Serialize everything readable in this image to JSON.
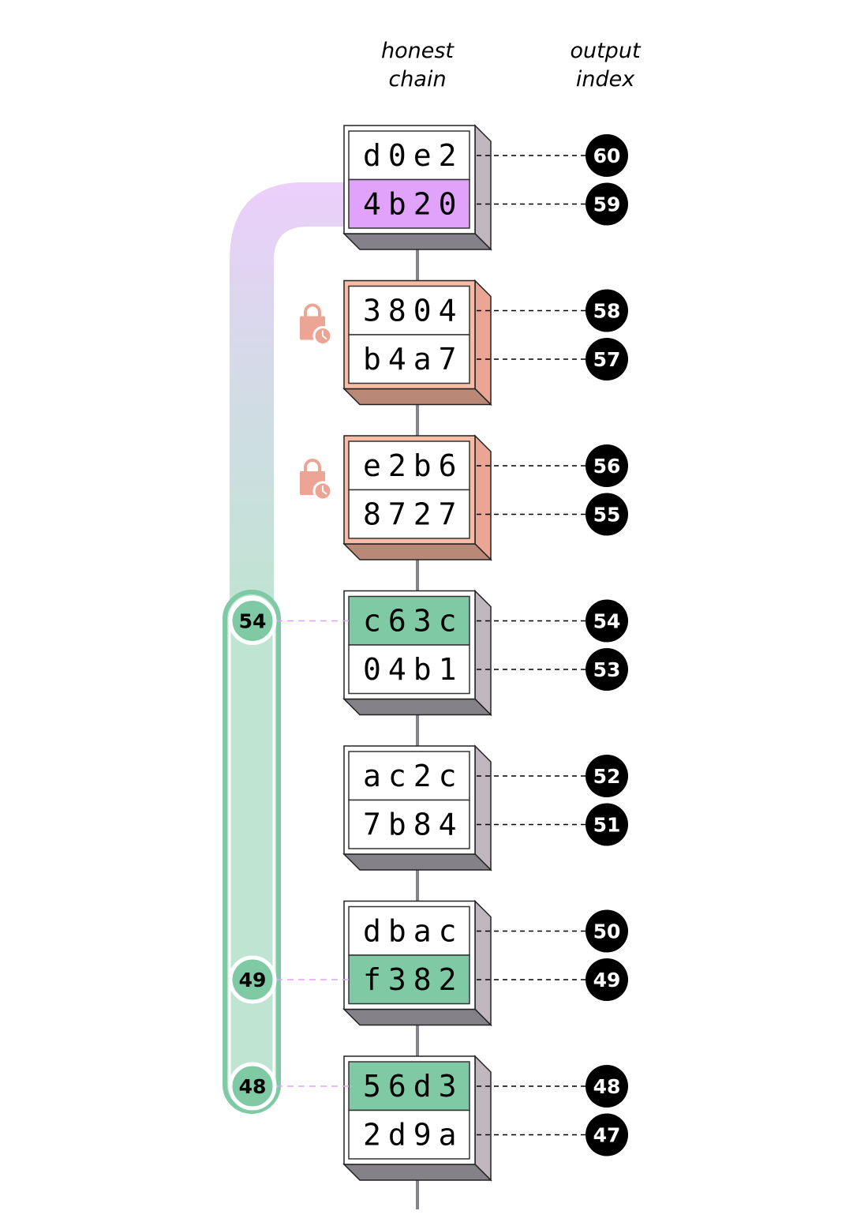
{
  "headers": {
    "chain": [
      "honest",
      "chain"
    ],
    "index": [
      "output",
      "index"
    ]
  },
  "colors": {
    "highlight_purple": "#e0a2fa",
    "highlight_green": "#7fcaa5",
    "pending_frame": "#f7bba6",
    "pending_side": "#eba595",
    "pending_bottom": "#b98876",
    "normal_side": "#c0b6be",
    "normal_bottom": "#848288",
    "index_badge": "#000000",
    "lock_icon": "#eca595"
  },
  "blocks": [
    {
      "state": "normal",
      "locked": false,
      "cells": [
        {
          "text": "d0e2",
          "index": "60",
          "highlight": null
        },
        {
          "text": "4b20",
          "index": "59",
          "highlight": "purple"
        }
      ]
    },
    {
      "state": "pending",
      "locked": true,
      "cells": [
        {
          "text": "3804",
          "index": "58",
          "highlight": null
        },
        {
          "text": "b4a7",
          "index": "57",
          "highlight": null
        }
      ]
    },
    {
      "state": "pending",
      "locked": true,
      "cells": [
        {
          "text": "e2b6",
          "index": "56",
          "highlight": null
        },
        {
          "text": "8727",
          "index": "55",
          "highlight": null
        }
      ]
    },
    {
      "state": "normal",
      "locked": false,
      "cells": [
        {
          "text": "c63c",
          "index": "54",
          "highlight": "green",
          "marker": "54"
        },
        {
          "text": "04b1",
          "index": "53",
          "highlight": null
        }
      ]
    },
    {
      "state": "normal",
      "locked": false,
      "cells": [
        {
          "text": "ac2c",
          "index": "52",
          "highlight": null
        },
        {
          "text": "7b84",
          "index": "51",
          "highlight": null
        }
      ]
    },
    {
      "state": "normal",
      "locked": false,
      "cells": [
        {
          "text": "dbac",
          "index": "50",
          "highlight": null
        },
        {
          "text": "f382",
          "index": "49",
          "highlight": "green",
          "marker": "49"
        }
      ]
    },
    {
      "state": "normal",
      "locked": false,
      "cells": [
        {
          "text": "56d3",
          "index": "48",
          "highlight": "green",
          "marker": "48"
        },
        {
          "text": "2d9a",
          "index": "47",
          "highlight": null
        }
      ]
    }
  ]
}
